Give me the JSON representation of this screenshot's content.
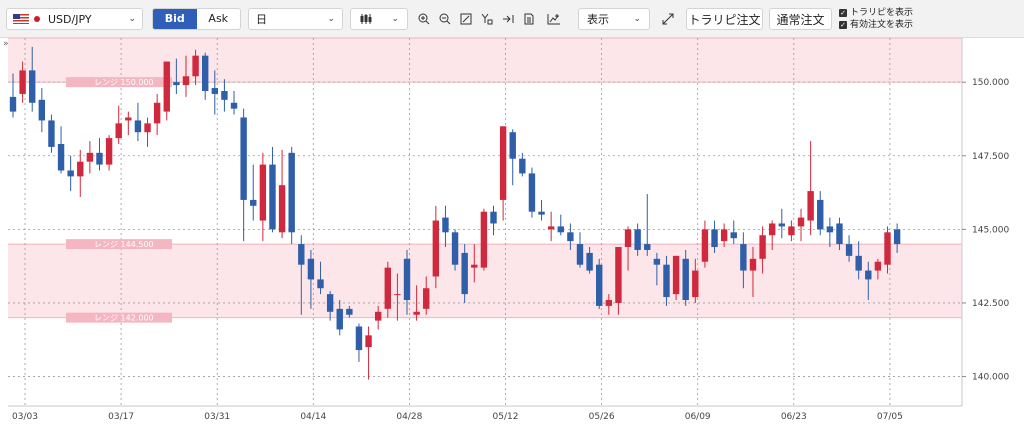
{
  "toolbar": {
    "symbol": "USD/JPY",
    "bid_label": "Bid",
    "ask_label": "Ask",
    "period": "日",
    "display_label": "表示",
    "trailing_order_label": "トラリピ注文",
    "normal_order_label": "通常注文",
    "show_trailing_label": "トラリピを表示",
    "show_active_orders_label": "有効注文を表示",
    "collapse_label": "»",
    "chevron": "⌄"
  },
  "chart_data": {
    "type": "candlestick",
    "ylim": [
      139.0,
      151.5
    ],
    "yticks": [
      {
        "value": 140.0,
        "label": "140.000"
      },
      {
        "value": 142.5,
        "label": "142.500"
      },
      {
        "value": 145.0,
        "label": "145.000"
      },
      {
        "value": 147.5,
        "label": "147.500"
      },
      {
        "value": 150.0,
        "label": "150.000"
      }
    ],
    "xticks": [
      {
        "index": 0,
        "label": "03/03"
      },
      {
        "index": 10,
        "label": "03/17"
      },
      {
        "index": 20,
        "label": "03/31"
      },
      {
        "index": 30,
        "label": "04/14"
      },
      {
        "index": 40,
        "label": "04/28"
      },
      {
        "index": 50,
        "label": "05/12"
      },
      {
        "index": 60,
        "label": "05/26"
      },
      {
        "index": 70,
        "label": "06/09"
      },
      {
        "index": 80,
        "label": "06/23"
      },
      {
        "index": 90,
        "label": "07/05"
      }
    ],
    "bands": [
      {
        "from": 150.0,
        "to": 151.5
      },
      {
        "from": 142.0,
        "to": 144.5
      }
    ],
    "range_labels": [
      {
        "text": "レンジ 150.000"
      },
      {
        "text": "レンジ 144.500"
      },
      {
        "text": "レンジ 142.000"
      }
    ],
    "up_color": "#d0283c",
    "down_color": "#2e5fa8",
    "candles": [
      [
        149.5,
        150.3,
        148.8,
        149.0
      ],
      [
        149.6,
        150.7,
        149.3,
        150.4
      ],
      [
        150.4,
        151.2,
        149.0,
        149.3
      ],
      [
        149.4,
        149.8,
        148.3,
        148.7
      ],
      [
        148.7,
        148.9,
        147.6,
        147.8
      ],
      [
        147.9,
        148.5,
        146.9,
        147.0
      ],
      [
        147.0,
        147.5,
        146.3,
        146.8
      ],
      [
        146.8,
        147.7,
        146.1,
        147.3
      ],
      [
        147.3,
        148.0,
        146.9,
        147.6
      ],
      [
        147.6,
        148.1,
        147.0,
        147.2
      ],
      [
        147.2,
        148.2,
        147.0,
        148.1
      ],
      [
        148.1,
        149.2,
        147.9,
        148.6
      ],
      [
        148.7,
        149.0,
        148.2,
        148.8
      ],
      [
        148.7,
        149.3,
        148.0,
        148.3
      ],
      [
        148.3,
        148.8,
        147.8,
        148.6
      ],
      [
        148.6,
        149.6,
        148.2,
        149.3
      ],
      [
        149.0,
        150.6,
        148.7,
        150.7
      ],
      [
        150.0,
        150.8,
        149.6,
        149.9
      ],
      [
        149.9,
        150.9,
        149.5,
        150.2
      ],
      [
        150.2,
        151.1,
        149.9,
        150.9
      ],
      [
        150.9,
        151.0,
        149.4,
        149.7
      ],
      [
        149.8,
        150.4,
        148.9,
        149.6
      ],
      [
        149.7,
        150.1,
        149.0,
        149.4
      ],
      [
        149.3,
        149.7,
        148.9,
        149.1
      ],
      [
        148.8,
        149.1,
        144.6,
        146.0
      ],
      [
        146.0,
        147.2,
        145.3,
        145.8
      ],
      [
        145.3,
        147.6,
        144.6,
        147.2
      ],
      [
        147.2,
        147.8,
        144.9,
        145.0
      ],
      [
        144.9,
        147.7,
        144.7,
        146.5
      ],
      [
        147.6,
        147.8,
        144.5,
        144.9
      ],
      [
        144.5,
        144.8,
        142.1,
        143.8
      ],
      [
        144.0,
        144.3,
        142.3,
        143.3
      ],
      [
        143.3,
        143.9,
        142.8,
        143.0
      ],
      [
        142.8,
        142.9,
        141.9,
        142.2
      ],
      [
        142.3,
        142.6,
        141.4,
        141.6
      ],
      [
        142.3,
        142.4,
        142.0,
        142.1
      ],
      [
        141.7,
        141.8,
        140.5,
        140.9
      ],
      [
        141.0,
        141.7,
        139.9,
        141.4
      ],
      [
        141.9,
        142.4,
        141.6,
        142.2
      ],
      [
        142.3,
        143.9,
        142.0,
        143.7
      ],
      [
        142.8,
        143.5,
        141.9,
        142.8
      ],
      [
        144.0,
        144.3,
        142.1,
        142.6
      ],
      [
        142.1,
        143.1,
        141.9,
        142.2
      ],
      [
        142.3,
        143.4,
        142.1,
        143.0
      ],
      [
        143.4,
        145.8,
        143.0,
        145.3
      ],
      [
        145.4,
        145.8,
        144.4,
        144.9
      ],
      [
        144.9,
        145.0,
        143.6,
        143.8
      ],
      [
        144.2,
        144.5,
        142.5,
        142.8
      ],
      [
        143.7,
        144.5,
        143.2,
        143.8
      ],
      [
        143.7,
        145.7,
        143.6,
        145.6
      ],
      [
        145.6,
        145.8,
        144.8,
        145.2
      ],
      [
        146.0,
        148.5,
        145.3,
        148.5
      ],
      [
        148.3,
        148.4,
        146.5,
        147.4
      ],
      [
        147.4,
        147.6,
        146.8,
        146.9
      ],
      [
        146.9,
        147.1,
        145.4,
        145.6
      ],
      [
        145.6,
        146.0,
        145.3,
        145.5
      ],
      [
        145.0,
        145.6,
        144.6,
        145.1
      ],
      [
        145.1,
        145.5,
        144.8,
        144.9
      ],
      [
        144.9,
        145.2,
        144.3,
        144.6
      ],
      [
        144.5,
        144.9,
        143.7,
        143.8
      ],
      [
        144.2,
        144.4,
        143.5,
        143.6
      ],
      [
        143.8,
        144.0,
        142.3,
        142.4
      ],
      [
        142.4,
        142.8,
        142.1,
        142.6
      ],
      [
        142.5,
        144.4,
        142.1,
        144.4
      ],
      [
        144.4,
        145.1,
        143.6,
        145.0
      ],
      [
        145.0,
        145.2,
        144.1,
        144.3
      ],
      [
        144.5,
        146.2,
        144.1,
        144.3
      ],
      [
        144.0,
        144.2,
        143.1,
        143.8
      ],
      [
        143.8,
        144.1,
        142.4,
        142.7
      ],
      [
        142.8,
        144.1,
        142.6,
        144.1
      ],
      [
        144.0,
        144.3,
        142.4,
        142.6
      ],
      [
        142.7,
        144.0,
        142.5,
        143.6
      ],
      [
        143.9,
        145.3,
        143.7,
        145.0
      ],
      [
        145.0,
        145.3,
        144.2,
        144.4
      ],
      [
        144.6,
        145.2,
        144.4,
        145.0
      ],
      [
        144.9,
        145.3,
        144.5,
        144.7
      ],
      [
        144.5,
        144.9,
        143.0,
        143.6
      ],
      [
        143.6,
        144.4,
        142.7,
        144.0
      ],
      [
        144.0,
        145.1,
        143.5,
        144.8
      ],
      [
        144.8,
        145.3,
        144.3,
        145.2
      ],
      [
        145.2,
        145.7,
        144.7,
        145.1
      ],
      [
        144.8,
        145.3,
        144.6,
        145.1
      ],
      [
        145.1,
        145.7,
        144.6,
        145.4
      ],
      [
        145.3,
        148.0,
        144.8,
        146.3
      ],
      [
        146.0,
        146.3,
        144.8,
        145.0
      ],
      [
        145.1,
        145.4,
        144.4,
        144.9
      ],
      [
        145.2,
        145.4,
        144.3,
        144.5
      ],
      [
        144.5,
        144.8,
        143.9,
        144.1
      ],
      [
        144.1,
        144.6,
        143.3,
        143.6
      ],
      [
        143.6,
        143.9,
        142.6,
        143.3
      ],
      [
        143.6,
        144.0,
        143.3,
        143.9
      ],
      [
        143.8,
        145.1,
        143.5,
        144.9
      ],
      [
        145.0,
        145.2,
        144.2,
        144.5
      ]
    ]
  }
}
